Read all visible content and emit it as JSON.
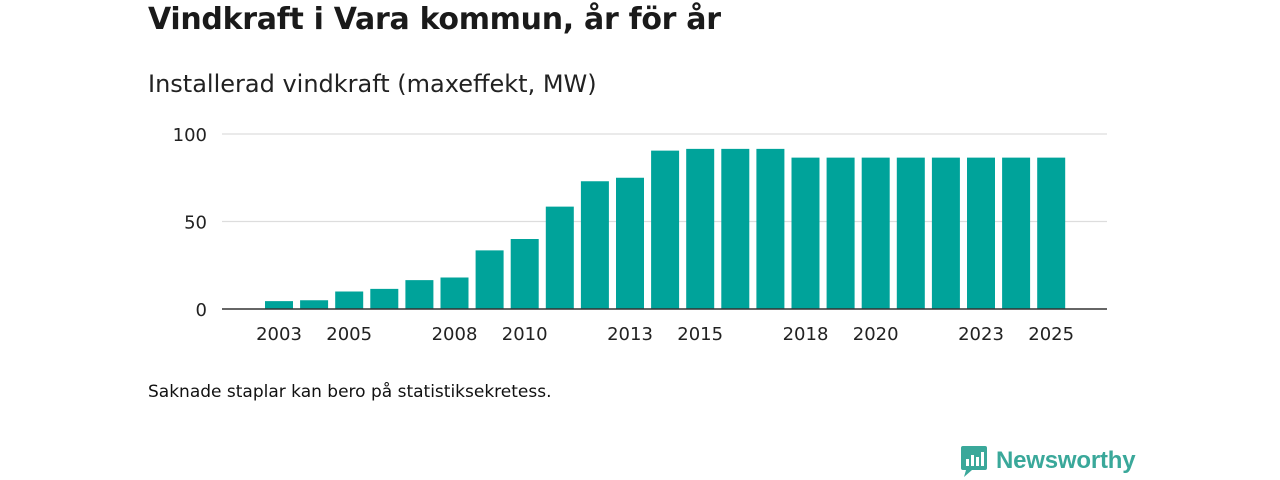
{
  "title": "Vindkraft i Vara kommun, år för år",
  "subtitle": "Installerad vindkraft (maxeffekt, MW)",
  "note": "Saknade staplar kan bero på statistiksekretess.",
  "brand": {
    "name": "Newsworthy",
    "icon": "newsworthy-logo-icon"
  },
  "colors": {
    "bar": "#00a39a",
    "grid": "#dddddd",
    "axis": "#333333",
    "brand": "#3aa89a"
  },
  "chart_data": {
    "type": "bar",
    "title": "Installerad vindkraft (maxeffekt, MW)",
    "xlabel": "",
    "ylabel": "",
    "ylim": [
      0,
      100
    ],
    "yticks": [
      0,
      50,
      100
    ],
    "xtick_labels": [
      "2003",
      "2005",
      "2008",
      "2010",
      "2013",
      "2015",
      "2018",
      "2020",
      "2023",
      "2025"
    ],
    "categories": [
      "2003",
      "2004",
      "2005",
      "2006",
      "2007",
      "2008",
      "2009",
      "2010",
      "2011",
      "2012",
      "2013",
      "2014",
      "2015",
      "2016",
      "2017",
      "2018",
      "2019",
      "2020",
      "2021",
      "2022",
      "2023",
      "2024",
      "2025"
    ],
    "values": [
      4.5,
      5,
      10,
      11.5,
      16.5,
      18,
      33.5,
      40,
      58.5,
      73,
      75,
      90.5,
      91.5,
      91.5,
      91.5,
      86.5,
      86.5,
      86.5,
      86.5,
      86.5,
      86.5,
      86.5,
      86.5
    ]
  }
}
